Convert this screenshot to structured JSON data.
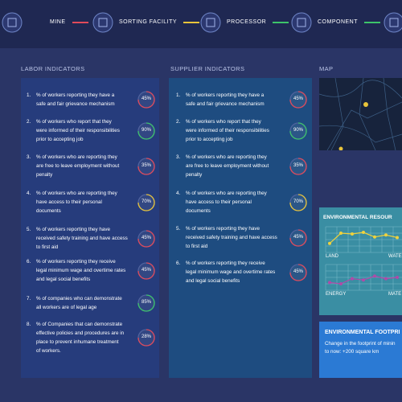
{
  "nav": [
    {
      "label": "MINE",
      "color": "#e04a5a"
    },
    {
      "label": "SORTING FACILITY",
      "color": "#e8c43a"
    },
    {
      "label": "PROCESSOR",
      "color": "#3dc46a"
    },
    {
      "label": "COMPONENT",
      "color": "#3dc46a"
    }
  ],
  "labor": {
    "title": "LABOR INDICATORS",
    "items": [
      {
        "number": "1.",
        "lines": [
          "% of workers reporting they have a",
          "safe and fair grievance mechanism"
        ],
        "percent": "45%",
        "color": "#e04a5a"
      },
      {
        "number": "2.",
        "lines": [
          "% of workers who report that they",
          "were informed of their responsibilities",
          "prior to accepting job"
        ],
        "percent": "90%",
        "color": "#3dc46a"
      },
      {
        "number": "3.",
        "lines": [
          "% of workers who are reporting they",
          "are free to leave employment without",
          "penalty"
        ],
        "percent": "35%",
        "color": "#e04a5a"
      },
      {
        "number": "4.",
        "lines": [
          "% of workers who are reporting they",
          "have access to their personal",
          "documents"
        ],
        "percent": "70%",
        "color": "#e8c43a"
      },
      {
        "number": "5.",
        "lines": [
          "% of workers reporting they have",
          "received safety training and have access",
          "to first aid"
        ],
        "percent": "45%",
        "color": "#e04a5a"
      },
      {
        "number": "6.",
        "lines": [
          "% of workers reporting they receive",
          "legal minimum wage and overtime rates",
          "and legal social benefits"
        ],
        "percent": "45%",
        "color": "#e04a5a"
      },
      {
        "number": "7.",
        "lines": [
          "% of companies who can demonstrate",
          "all workers are of legal age"
        ],
        "percent": "85%",
        "color": "#3dc46a"
      },
      {
        "number": "8.",
        "lines": [
          "% of Companies that can demonstrate",
          "effective policies and procedures are in",
          "place to prevent inhumane treatment",
          "of workers."
        ],
        "percent": "28%",
        "color": "#e04a5a"
      }
    ]
  },
  "supplier": {
    "title": "SUPPLIER INDICATORS",
    "items": [
      {
        "number": "1.",
        "lines": [
          "% of workers reporting they have a",
          "safe and fair grievance mechanism"
        ],
        "percent": "45%",
        "color": "#e04a5a"
      },
      {
        "number": "2.",
        "lines": [
          "% of workers who report that they",
          "were informed of their responsibilities",
          "prior to accepting job"
        ],
        "percent": "90%",
        "color": "#3dc46a"
      },
      {
        "number": "3.",
        "lines": [
          "% of workers who are reporting they",
          "are free to leave employment without",
          "penalty"
        ],
        "percent": "35%",
        "color": "#e04a5a"
      },
      {
        "number": "4.",
        "lines": [
          "% of workers who are reporting they",
          "have access to their personal",
          "documents"
        ],
        "percent": "70%",
        "color": "#e8c43a"
      },
      {
        "number": "5.",
        "lines": [
          "% of workers reporting they have",
          "received safety training and have access",
          "to first aid"
        ],
        "percent": "45%",
        "color": "#e04a5a"
      },
      {
        "number": "6.",
        "lines": [
          "% of workers reporting they receive",
          "legal minimum wage and overtime rates",
          "and legal social benefits"
        ],
        "percent": "45%",
        "color": "#e04a5a"
      }
    ]
  },
  "map": {
    "title": "MAP"
  },
  "resources": {
    "title": "ENVIRONMENTAL RESOUR",
    "charts": [
      {
        "labels": [
          "LAND",
          "WATE"
        ],
        "color": "#f0d23c",
        "values": [
          35,
          75,
          72,
          78,
          60,
          68,
          58
        ]
      },
      {
        "labels": [
          "ENERGY",
          "MATE"
        ],
        "color": "#b04aa8",
        "values": [
          30,
          25,
          45,
          40,
          55,
          45,
          50
        ]
      }
    ]
  },
  "footprint": {
    "title": "ENVIRONMENTAL FOOTPRI",
    "lines": [
      "Change in the footprint of minin",
      "to now: +200 square km"
    ]
  }
}
